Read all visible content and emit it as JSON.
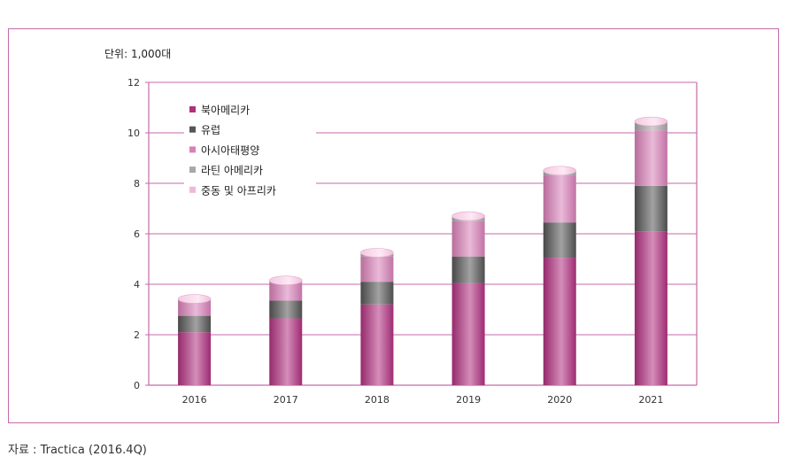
{
  "unit_label": "단위: 1,000대",
  "source": "자료 : Tractica (2016.4Q)",
  "chart_data": {
    "type": "bar",
    "stacked": true,
    "categories": [
      "2016",
      "2017",
      "2018",
      "2019",
      "2020",
      "2021"
    ],
    "ylim": [
      0,
      12
    ],
    "yticks": [
      0,
      2,
      4,
      6,
      8,
      10,
      12
    ],
    "grid": true,
    "legend_position": "top-left",
    "series": [
      {
        "name": "북아메리카",
        "color": "#b0307f",
        "values": [
          2.1,
          2.65,
          3.2,
          4.05,
          5.05,
          6.1
        ]
      },
      {
        "name": "유럽",
        "color": "#555555",
        "values": [
          0.65,
          0.7,
          0.9,
          1.05,
          1.4,
          1.8
        ]
      },
      {
        "name": "아시아태평양",
        "color": "#d880b8",
        "values": [
          0.6,
          0.7,
          1.0,
          1.4,
          1.85,
          2.2
        ]
      },
      {
        "name": "라틴 아메리카",
        "color": "#a8a8a8",
        "values": [
          0.05,
          0.08,
          0.1,
          0.15,
          0.15,
          0.3
        ]
      },
      {
        "name": "중동 및 아프리카",
        "color": "#efb8d8",
        "values": [
          0.02,
          0.02,
          0.05,
          0.05,
          0.05,
          0.05
        ]
      }
    ]
  }
}
